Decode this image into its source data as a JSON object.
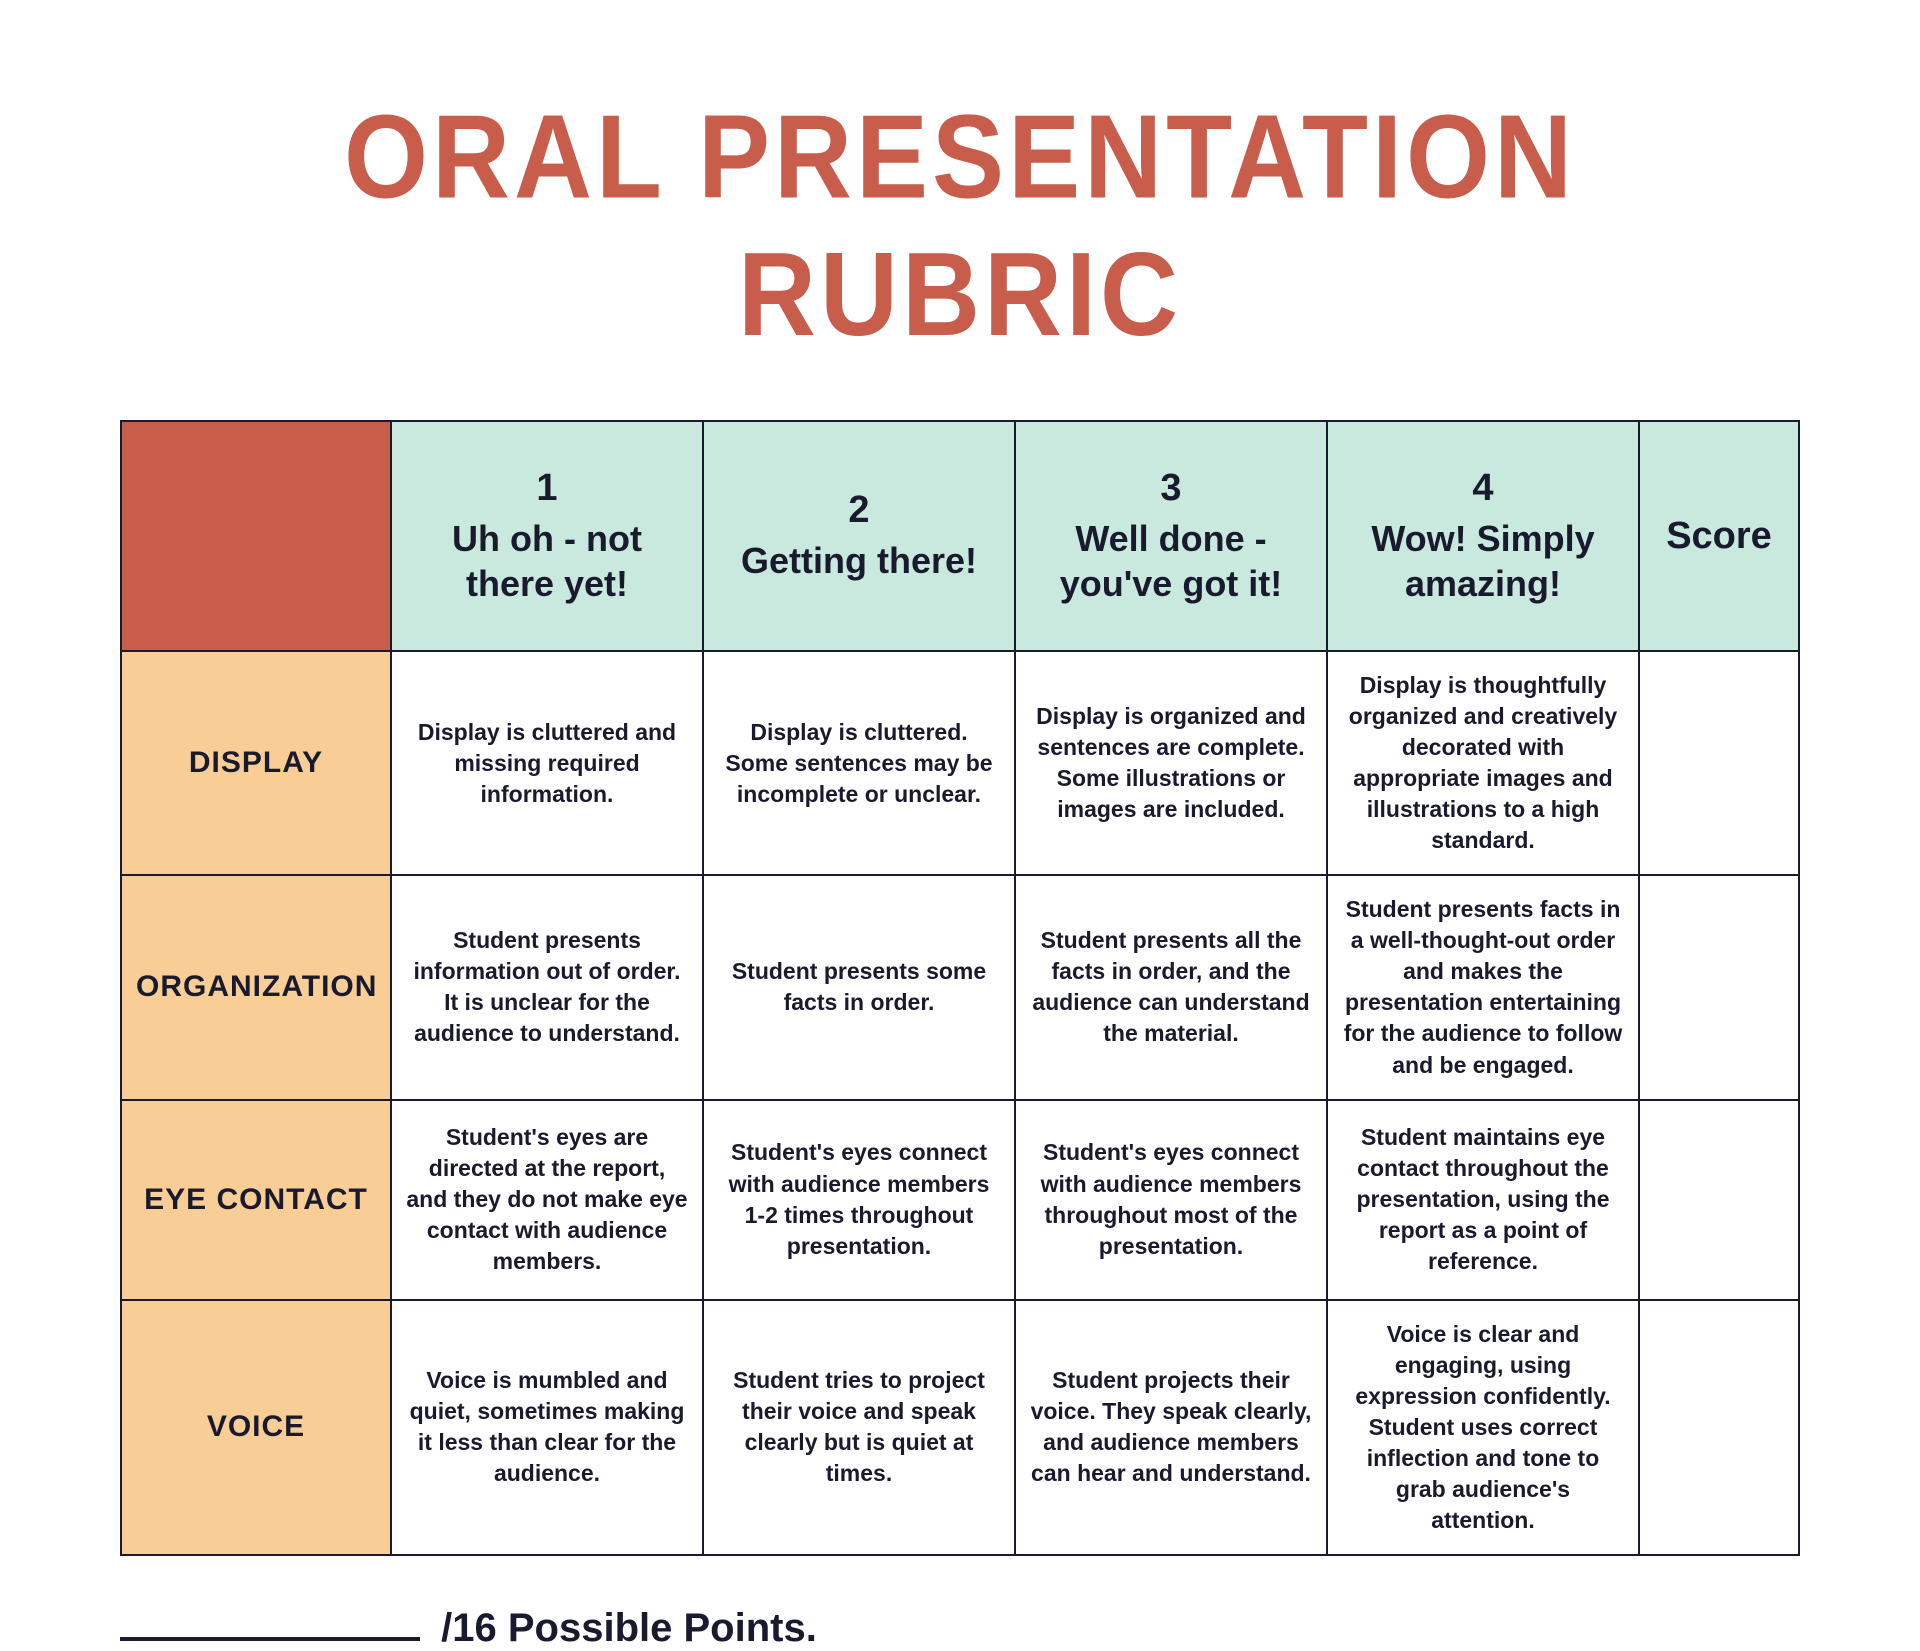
{
  "title": "ORAL PRESENTATION RUBRIC",
  "colors": {
    "title_color": "#c75d4a",
    "corner_bg": "#c75d4a",
    "level_header_bg": "#c9e8de",
    "row_label_bg": "#f9cd96",
    "cell_bg": "#ffffff",
    "border_color": "#1a1a2e",
    "text_color": "#1a1a2e"
  },
  "fonts": {
    "title_size": 108,
    "level_num_size": 38,
    "level_label_size": 36,
    "row_label_size": 30,
    "cell_size": 23,
    "footer_size": 40
  },
  "levels": [
    {
      "num": "1",
      "label": "Uh oh - not there yet!"
    },
    {
      "num": "2",
      "label": "Getting there!"
    },
    {
      "num": "3",
      "label": "Well done - you've got it!"
    },
    {
      "num": "4",
      "label": "Wow! Simply amazing!"
    }
  ],
  "score_header": "Score",
  "rows": [
    {
      "label": "DISPLAY",
      "cells": [
        "Display is cluttered and missing required information.",
        "Display is cluttered. Some sentences may be incomplete or unclear.",
        "Display is organized and sentences are complete. Some illustrations or images are included.",
        "Display is thoughtfully organized and creatively decorated with appropriate images and illustrations to a high standard."
      ]
    },
    {
      "label": "ORGANIZATION",
      "cells": [
        "Student presents information out of order. It is unclear for the audience to understand.",
        "Student presents some facts in order.",
        "Student presents all the facts in order, and the audience can understand the material.",
        "Student presents facts in a well-thought-out order and makes the presentation entertaining for the audience to follow and be engaged."
      ]
    },
    {
      "label": "EYE CONTACT",
      "cells": [
        "Student's eyes are directed at the report, and they do not make eye contact with audience members.",
        "Student's eyes connect with audience members 1-2 times throughout presentation.",
        "Student's eyes connect with audience members throughout most of the presentation.",
        "Student maintains eye contact throughout the presentation, using the report as a point of reference."
      ]
    },
    {
      "label": "VOICE",
      "cells": [
        "Voice is mumbled and quiet, sometimes making it less than clear for the audience.",
        "Student tries to project their voice and speak clearly but is quiet at times.",
        "Student projects their voice. They speak clearly, and audience members can hear and understand.",
        "Voice is clear and engaging, using expression confidently. Student uses correct inflection and tone to grab audience's attention."
      ]
    }
  ],
  "footer_text": "/16 Possible Points."
}
